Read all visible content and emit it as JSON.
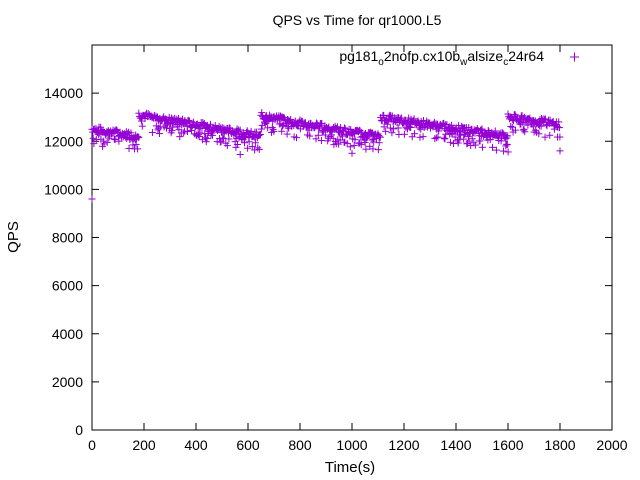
{
  "chart_data": {
    "type": "scatter",
    "title": "QPS vs Time for qr1000.L5",
    "xlabel": "Time(s)",
    "ylabel": "QPS",
    "xlim": [
      0,
      2000
    ],
    "ylim": [
      0,
      16000
    ],
    "xticks": [
      0,
      200,
      400,
      600,
      800,
      1000,
      1200,
      1400,
      1600,
      1800,
      2000
    ],
    "yticks": [
      0,
      2000,
      4000,
      6000,
      8000,
      10000,
      12000,
      14000
    ],
    "grid": false,
    "legend_position": "top-right",
    "series": [
      {
        "name": "pg181_o2nofp.cx10b_walsize_c24r64",
        "color": "#9400d3",
        "marker": "+",
        "segments": [
          {
            "t_start": 0,
            "t_end": 180,
            "q_start": 12500,
            "q_end": 12200
          },
          {
            "t_start": 180,
            "t_end": 650,
            "q_start": 13100,
            "q_end": 12200
          },
          {
            "t_start": 650,
            "t_end": 1110,
            "q_start": 13050,
            "q_end": 12150
          },
          {
            "t_start": 1110,
            "t_end": 1600,
            "q_start": 13000,
            "q_end": 12200
          },
          {
            "t_start": 1600,
            "t_end": 1800,
            "q_start": 13000,
            "q_end": 12700
          }
        ],
        "notable_points": [
          {
            "x": 0,
            "y": 9600
          },
          {
            "x": 1800,
            "y": 11600
          },
          {
            "x": 570,
            "y": 11450
          },
          {
            "x": 1000,
            "y": 11500
          }
        ]
      }
    ]
  },
  "legend": {
    "label_parts": [
      {
        "text": "pg181",
        "sub": false
      },
      {
        "text": "o",
        "sub": true
      },
      {
        "text": "2nofp.cx10b",
        "sub": false
      },
      {
        "text": "w",
        "sub": true
      },
      {
        "text": "alsize",
        "sub": false
      },
      {
        "text": "c",
        "sub": true
      },
      {
        "text": "24r64",
        "sub": false
      }
    ]
  }
}
